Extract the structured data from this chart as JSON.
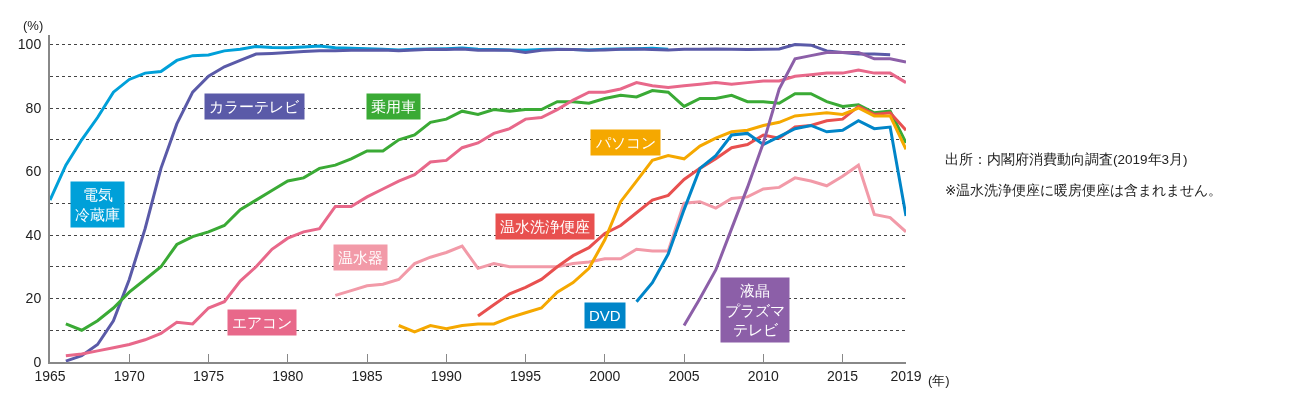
{
  "chart_data": {
    "type": "line",
    "ylabel": "(%)",
    "xlabel": "(年)",
    "xlim": [
      1965,
      2019
    ],
    "xticks": [
      1965,
      1970,
      1975,
      1980,
      1985,
      1990,
      1995,
      2000,
      2005,
      2010,
      2015,
      2019
    ],
    "ylim": [
      0,
      103
    ],
    "yticks": [
      0,
      {
        "value": 10,
        "label": null
      },
      20,
      {
        "value": 30,
        "label": null
      },
      40,
      {
        "value": 50,
        "label": null
      },
      60,
      {
        "value": 70,
        "label": null
      },
      80,
      {
        "value": 90,
        "label": null
      },
      100
    ],
    "grid": "y",
    "legend": false,
    "marker": "none",
    "line_style": "solid",
    "annotations": [
      "出所：内閣府消費動向調査(2019年3月)",
      "※温水洗浄便座に暖房便座は含まれません。"
    ],
    "series": [
      {
        "name": "電気冷蔵庫",
        "color": "#00a0d9",
        "x": [
          1965,
          1966,
          1967,
          1968,
          1969,
          1970,
          1971,
          1972,
          1973,
          1974,
          1975,
          1976,
          1977,
          1978,
          1979,
          1980,
          1981,
          1982,
          1983,
          1984,
          1985,
          1986,
          1987,
          1988,
          1989,
          1990,
          1991,
          1992,
          1993,
          1994,
          1995,
          1996,
          1997,
          1998,
          1999,
          2000,
          2001,
          2002,
          2003,
          2004
        ],
        "values": [
          51,
          62,
          70,
          77,
          85,
          89,
          91,
          91.5,
          95,
          96.5,
          96.7,
          98,
          98.5,
          99.4,
          99.1,
          99,
          99.2,
          99.5,
          99,
          98.8,
          98.7,
          98.5,
          98.3,
          98.5,
          98.6,
          98.7,
          98.9,
          98.5,
          98.4,
          98.3,
          98.2,
          98.4,
          98.5,
          98.4,
          98.3,
          98.5,
          98.6,
          98.7,
          98.8,
          98.5
        ]
      },
      {
        "name": "カラーテレビ",
        "color": "#5a5aa8",
        "x": [
          1966,
          1967,
          1968,
          1969,
          1970,
          1971,
          1972,
          1973,
          1974,
          1975,
          1976,
          1977,
          1978,
          1979,
          1980,
          1981,
          1982,
          1983,
          1984,
          1985,
          1986,
          1987,
          1988,
          1989,
          1990,
          1991,
          1992,
          1993,
          1994,
          1995,
          1996,
          1997,
          1998,
          1999,
          2000,
          2001,
          2002,
          2003,
          2004,
          2005,
          2006,
          2007,
          2008,
          2009,
          2010,
          2011,
          2012,
          2013,
          2014,
          2015,
          2016,
          2017,
          2018
        ],
        "values": [
          0.3,
          2,
          5.5,
          13,
          26,
          42,
          61,
          75,
          85,
          90,
          93,
          95,
          97,
          97.2,
          97.5,
          97.8,
          98,
          98,
          98.2,
          98.2,
          98.3,
          98,
          98.3,
          98.5,
          98.4,
          98.6,
          98.2,
          98.3,
          98.2,
          97.5,
          98.2,
          98.4,
          98.4,
          98.2,
          98.3,
          98.5,
          98.6,
          98.4,
          98.3,
          98.5,
          98.5,
          98.6,
          98.5,
          98.4,
          98.5,
          98.6,
          100,
          99.8,
          98,
          97.5,
          97,
          97,
          96.8
        ]
      },
      {
        "name": "乗用車",
        "color": "#3aaa35",
        "x": [
          1966,
          1967,
          1968,
          1969,
          1970,
          1971,
          1972,
          1973,
          1974,
          1975,
          1976,
          1977,
          1978,
          1979,
          1980,
          1981,
          1982,
          1983,
          1984,
          1985,
          1986,
          1987,
          1988,
          1989,
          1990,
          1991,
          1992,
          1993,
          1994,
          1995,
          1996,
          1997,
          1998,
          1999,
          2000,
          2001,
          2002,
          2003,
          2004,
          2005,
          2006,
          2007,
          2008,
          2009,
          2010,
          2011,
          2012,
          2013,
          2014,
          2015,
          2016,
          2017,
          2018,
          2019
        ],
        "values": [
          12,
          10,
          13,
          17,
          22,
          26,
          30,
          37,
          39.5,
          41,
          43,
          48,
          51,
          54,
          57,
          58,
          61,
          62,
          64,
          66.5,
          66.5,
          70,
          71.5,
          75.5,
          76.5,
          79,
          78,
          79.5,
          79,
          79.5,
          79.5,
          82,
          82,
          81.5,
          83,
          84,
          83.5,
          85.5,
          85,
          80.5,
          83,
          83,
          84,
          82,
          82,
          81.5,
          84.5,
          84.5,
          82,
          80.5,
          81,
          78.5,
          79,
          69
        ]
      },
      {
        "name": "エアコン",
        "color": "#e8688a",
        "x": [
          1966,
          1967,
          1968,
          1969,
          1970,
          1971,
          1972,
          1973,
          1974,
          1975,
          1976,
          1977,
          1978,
          1979,
          1980,
          1981,
          1982,
          1983,
          1984,
          1985,
          1986,
          1987,
          1988,
          1989,
          1990,
          1991,
          1992,
          1993,
          1994,
          1995,
          1996,
          1997,
          1998,
          1999,
          2000,
          2001,
          2002,
          2003,
          2004,
          2005,
          2006,
          2007,
          2008,
          2009,
          2010,
          2011,
          2012,
          2013,
          2014,
          2015,
          2016,
          2017,
          2018,
          2019
        ],
        "values": [
          2,
          2.5,
          3.5,
          4.5,
          5.5,
          7,
          9,
          12.5,
          12,
          17,
          19,
          25.5,
          30,
          35.5,
          39,
          41,
          42,
          49,
          49,
          52,
          54.5,
          57,
          59,
          63,
          63.5,
          67.5,
          69,
          72,
          73.5,
          76.5,
          77,
          79.5,
          82.5,
          85,
          85,
          86,
          88,
          87,
          86.5,
          87,
          87.5,
          88,
          87.5,
          88,
          88.5,
          88.5,
          90,
          90.5,
          91,
          91,
          92,
          91,
          91,
          88
        ]
      },
      {
        "name": "温水器",
        "color": "#f29aa8",
        "x": [
          1983,
          1984,
          1985,
          1986,
          1987,
          1988,
          1989,
          1990,
          1991,
          1992,
          1993,
          1994,
          1995,
          1996,
          1997,
          1998,
          1999,
          2000,
          2001,
          2002,
          2003,
          2004,
          2005,
          2006,
          2007,
          2008,
          2009,
          2010,
          2011,
          2012,
          2013,
          2014,
          2015,
          2016,
          2017,
          2018,
          2019
        ],
        "values": [
          21,
          22.5,
          24,
          24.5,
          26,
          31,
          33,
          34.5,
          36.5,
          29.5,
          31,
          30,
          30,
          30,
          30,
          31,
          31.5,
          32.5,
          32.5,
          35.5,
          35,
          35,
          50,
          50.5,
          48.5,
          51.5,
          52,
          54.5,
          55,
          58,
          57,
          55.5,
          58.5,
          62,
          46.5,
          45.5,
          41
        ]
      },
      {
        "name": "温水洗浄便座",
        "color": "#e8504f",
        "x": [
          1992,
          1993,
          1994,
          1995,
          1996,
          1997,
          1998,
          1999,
          2000,
          2001,
          2002,
          2003,
          2004,
          2005,
          2006,
          2007,
          2008,
          2009,
          2010,
          2011,
          2012,
          2013,
          2014,
          2015,
          2016,
          2017,
          2018,
          2019
        ],
        "values": [
          14.5,
          18,
          21.5,
          23.5,
          26,
          30,
          33.5,
          36,
          40.5,
          43,
          47,
          51,
          52.5,
          57.5,
          61,
          64,
          67.5,
          68.5,
          71.5,
          70.5,
          74,
          74.5,
          76,
          76.5,
          80.5,
          78,
          78.5,
          73
        ]
      },
      {
        "name": "パソコン",
        "color": "#f5a800",
        "x": [
          1987,
          1988,
          1989,
          1990,
          1991,
          1992,
          1993,
          1994,
          1995,
          1996,
          1997,
          1998,
          1999,
          2000,
          2001,
          2002,
          2003,
          2004,
          2005,
          2006,
          2007,
          2008,
          2009,
          2010,
          2011,
          2012,
          2013,
          2014,
          2015,
          2016,
          2017,
          2018,
          2019
        ],
        "values": [
          11.5,
          9.5,
          11.5,
          10.5,
          11.5,
          12,
          12,
          14,
          15.5,
          17,
          22,
          25,
          29.5,
          38.5,
          50.5,
          57,
          63.5,
          65,
          64,
          68,
          70.5,
          72.5,
          73,
          74.5,
          75.5,
          77.5,
          78,
          78.5,
          78,
          80,
          77.5,
          77.5,
          67
        ]
      },
      {
        "name": "DVD",
        "color": "#0085c8",
        "x": [
          2002,
          2003,
          2004,
          2005,
          2006,
          2007,
          2008,
          2009,
          2010,
          2011,
          2012,
          2013,
          2014,
          2015,
          2016,
          2017,
          2018,
          2019
        ],
        "values": [
          19,
          25,
          34,
          48,
          61,
          65,
          71.5,
          72,
          68.5,
          71,
          73.5,
          74.5,
          72.5,
          73,
          76,
          73.5,
          74,
          46
        ]
      },
      {
        "name": "液晶プラズマテレビ",
        "color": "#8c5fa8",
        "x": [
          2005,
          2006,
          2007,
          2008,
          2009,
          2010,
          2011,
          2012,
          2013,
          2014,
          2015,
          2016,
          2017,
          2018,
          2019
        ],
        "values": [
          11.5,
          20,
          29,
          42,
          55,
          69,
          86,
          95.5,
          96.5,
          97.5,
          97.5,
          97.5,
          95.5,
          95.5,
          94.5
        ]
      }
    ]
  }
}
